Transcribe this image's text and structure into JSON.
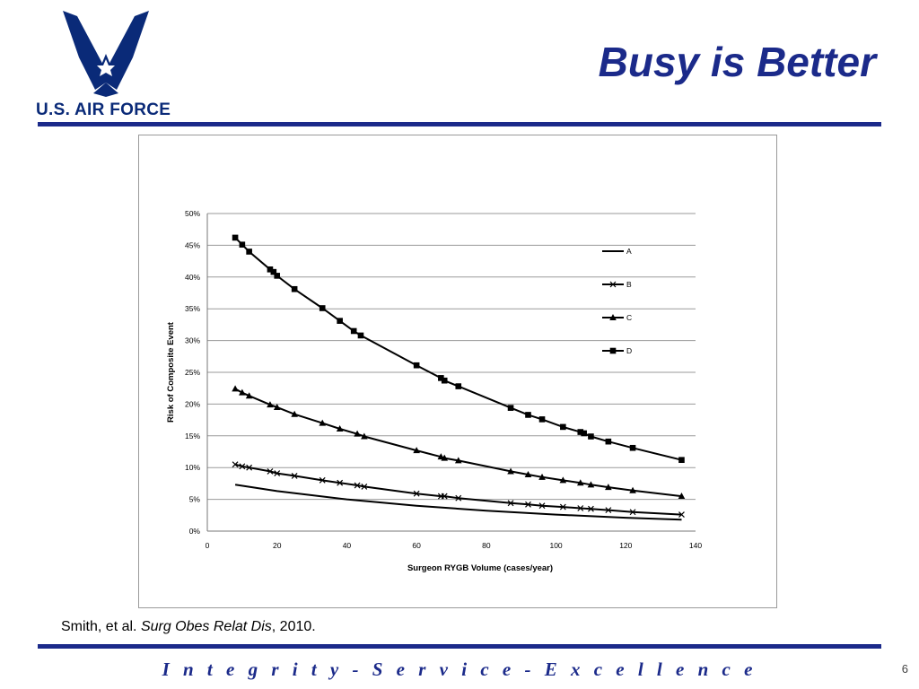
{
  "slide": {
    "title": "Busy is Better",
    "logo_text": "U.S. AIR FORCE",
    "citation_author": "Smith, et al.",
    "citation_journal": "Surg Obes Relat Dis",
    "citation_year": ", 2010.",
    "motto": "I n t e g r i t y  -  S e r v i c e  -  E x c e l l e n c e",
    "page_number": "6",
    "colors": {
      "brand_blue": "#1b2a8a",
      "logo_blue": "#0a2a78"
    }
  },
  "chart_data": {
    "type": "line",
    "title": "",
    "xlabel": "Surgeon RYGB Volume (cases/year)",
    "ylabel": "Risk of Composite Event",
    "xlim": [
      0,
      140
    ],
    "ylim": [
      0,
      0.5
    ],
    "xticks": [
      "0",
      "20",
      "40",
      "60",
      "80",
      "100",
      "120",
      "140"
    ],
    "yticks": [
      "0%",
      "5%",
      "10%",
      "15%",
      "20%",
      "25%",
      "30%",
      "35%",
      "40%",
      "45%",
      "50%"
    ],
    "grid": "horizontal",
    "legend_position": "top-right",
    "series": [
      {
        "name": "A",
        "marker": "none",
        "x": [
          8,
          20,
          40,
          60,
          80,
          100,
          120,
          136
        ],
        "y": [
          0.073,
          0.063,
          0.05,
          0.04,
          0.032,
          0.026,
          0.021,
          0.018
        ]
      },
      {
        "name": "B",
        "marker": "x",
        "x": [
          8,
          10,
          12,
          18,
          20,
          25,
          33,
          38,
          43,
          45,
          60,
          67,
          68,
          72,
          87,
          92,
          96,
          102,
          107,
          110,
          115,
          122,
          136
        ],
        "y": [
          0.105,
          0.102,
          0.1,
          0.094,
          0.091,
          0.087,
          0.08,
          0.076,
          0.072,
          0.07,
          0.059,
          0.055,
          0.055,
          0.052,
          0.044,
          0.042,
          0.04,
          0.038,
          0.036,
          0.035,
          0.033,
          0.03,
          0.026
        ]
      },
      {
        "name": "C",
        "marker": "triangle",
        "x": [
          8,
          10,
          12,
          18,
          20,
          25,
          33,
          38,
          43,
          45,
          60,
          67,
          68,
          72,
          87,
          92,
          96,
          102,
          107,
          110,
          115,
          122,
          136
        ],
        "y": [
          0.224,
          0.218,
          0.213,
          0.199,
          0.195,
          0.184,
          0.17,
          0.161,
          0.153,
          0.149,
          0.127,
          0.117,
          0.115,
          0.111,
          0.094,
          0.089,
          0.085,
          0.08,
          0.076,
          0.073,
          0.069,
          0.064,
          0.055
        ]
      },
      {
        "name": "D",
        "marker": "square",
        "x": [
          8,
          10,
          12,
          18,
          19,
          20,
          25,
          33,
          38,
          42,
          44,
          60,
          67,
          68,
          72,
          87,
          92,
          96,
          102,
          107,
          108,
          110,
          115,
          122,
          136
        ],
        "y": [
          0.462,
          0.451,
          0.44,
          0.412,
          0.408,
          0.402,
          0.381,
          0.351,
          0.331,
          0.315,
          0.308,
          0.261,
          0.241,
          0.237,
          0.228,
          0.194,
          0.183,
          0.176,
          0.164,
          0.156,
          0.154,
          0.149,
          0.141,
          0.131,
          0.112
        ]
      }
    ]
  }
}
